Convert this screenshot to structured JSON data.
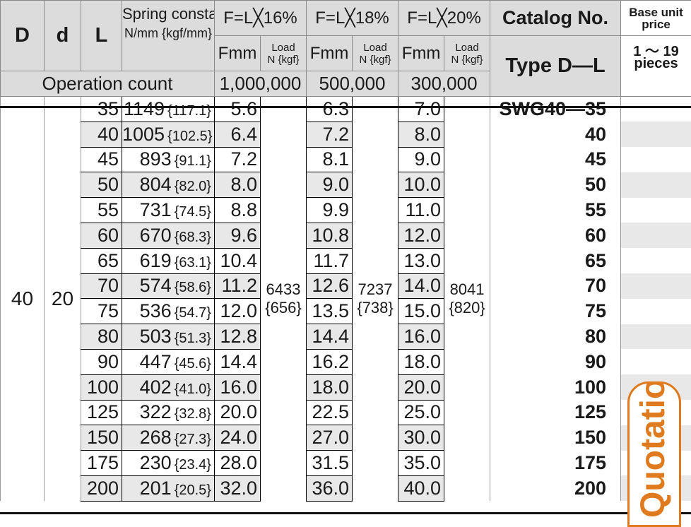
{
  "header": {
    "D": "D",
    "d": "d",
    "L": "L",
    "spring_constant": "Spring constant",
    "spring_unit": "N/mm {kgf/mm}",
    "f16": "F=L╳16%",
    "f18": "F=L╳18%",
    "f20": "F=L╳20%",
    "fmm": "Fmm",
    "load_line1": "Load",
    "load_line2": "N {kgf}",
    "catalog_no": "Catalog No.",
    "type": "Type D—L",
    "base_price_line1": "Base unit",
    "base_price_line2": "price",
    "qty_line1": "1 ～ 19",
    "qty_line2": "pieces",
    "operation_count": "Operation count",
    "op16": "1,000,000",
    "op18": "500,000",
    "op20": "300,000"
  },
  "group": {
    "D": "40",
    "d": "20",
    "load16": "6433",
    "load16_kgf": "{656}",
    "load18": "7237",
    "load18_kgf": "{738}",
    "load20": "8041",
    "load20_kgf": "{820}",
    "quotation": "Quotation"
  },
  "rows": [
    {
      "L": "35",
      "k": "1149",
      "kgf": "{117.1}",
      "f16": "5.6",
      "f18": "6.3",
      "f20": "7.0",
      "cat": "SWG40—35",
      "shade": false
    },
    {
      "L": "40",
      "k": "1005",
      "kgf": "{102.5}",
      "f16": "6.4",
      "f18": "7.2",
      "f20": "8.0",
      "cat": "40",
      "shade": true
    },
    {
      "L": "45",
      "k": "893",
      "kgf": "{91.1}",
      "f16": "7.2",
      "f18": "8.1",
      "f20": "9.0",
      "cat": "45",
      "shade": false
    },
    {
      "L": "50",
      "k": "804",
      "kgf": "{82.0}",
      "f16": "8.0",
      "f18": "9.0",
      "f20": "10.0",
      "cat": "50",
      "shade": true
    },
    {
      "L": "55",
      "k": "731",
      "kgf": "{74.5}",
      "f16": "8.8",
      "f18": "9.9",
      "f20": "11.0",
      "cat": "55",
      "shade": false
    },
    {
      "L": "60",
      "k": "670",
      "kgf": "{68.3}",
      "f16": "9.6",
      "f18": "10.8",
      "f20": "12.0",
      "cat": "60",
      "shade": true
    },
    {
      "L": "65",
      "k": "619",
      "kgf": "{63.1}",
      "f16": "10.4",
      "f18": "11.7",
      "f20": "13.0",
      "cat": "65",
      "shade": false
    },
    {
      "L": "70",
      "k": "574",
      "kgf": "{58.6}",
      "f16": "11.2",
      "f18": "12.6",
      "f20": "14.0",
      "cat": "70",
      "shade": true
    },
    {
      "L": "75",
      "k": "536",
      "kgf": "{54.7}",
      "f16": "12.0",
      "f18": "13.5",
      "f20": "15.0",
      "cat": "75",
      "shade": false
    },
    {
      "L": "80",
      "k": "503",
      "kgf": "{51.3}",
      "f16": "12.8",
      "f18": "14.4",
      "f20": "16.0",
      "cat": "80",
      "shade": true
    },
    {
      "L": "90",
      "k": "447",
      "kgf": "{45.6}",
      "f16": "14.4",
      "f18": "16.2",
      "f20": "18.0",
      "cat": "90",
      "shade": false
    },
    {
      "L": "100",
      "k": "402",
      "kgf": "{41.0}",
      "f16": "16.0",
      "f18": "18.0",
      "f20": "20.0",
      "cat": "100",
      "shade": true
    },
    {
      "L": "125",
      "k": "322",
      "kgf": "{32.8}",
      "f16": "20.0",
      "f18": "22.5",
      "f20": "25.0",
      "cat": "125",
      "shade": false
    },
    {
      "L": "150",
      "k": "268",
      "kgf": "{27.3}",
      "f16": "24.0",
      "f18": "27.0",
      "f20": "30.0",
      "cat": "150",
      "shade": true
    },
    {
      "L": "175",
      "k": "230",
      "kgf": "{23.4}",
      "f16": "28.0",
      "f18": "31.5",
      "f20": "35.0",
      "cat": "175",
      "shade": false
    },
    {
      "L": "200",
      "k": "201",
      "kgf": "{20.5}",
      "f16": "32.0",
      "f18": "36.0",
      "f20": "40.0",
      "cat": "200",
      "shade": true
    }
  ],
  "colors": {
    "header_bg": "#dcdcdc",
    "row_shade": "#e8e8e8",
    "quotation": "#e07a1f"
  }
}
